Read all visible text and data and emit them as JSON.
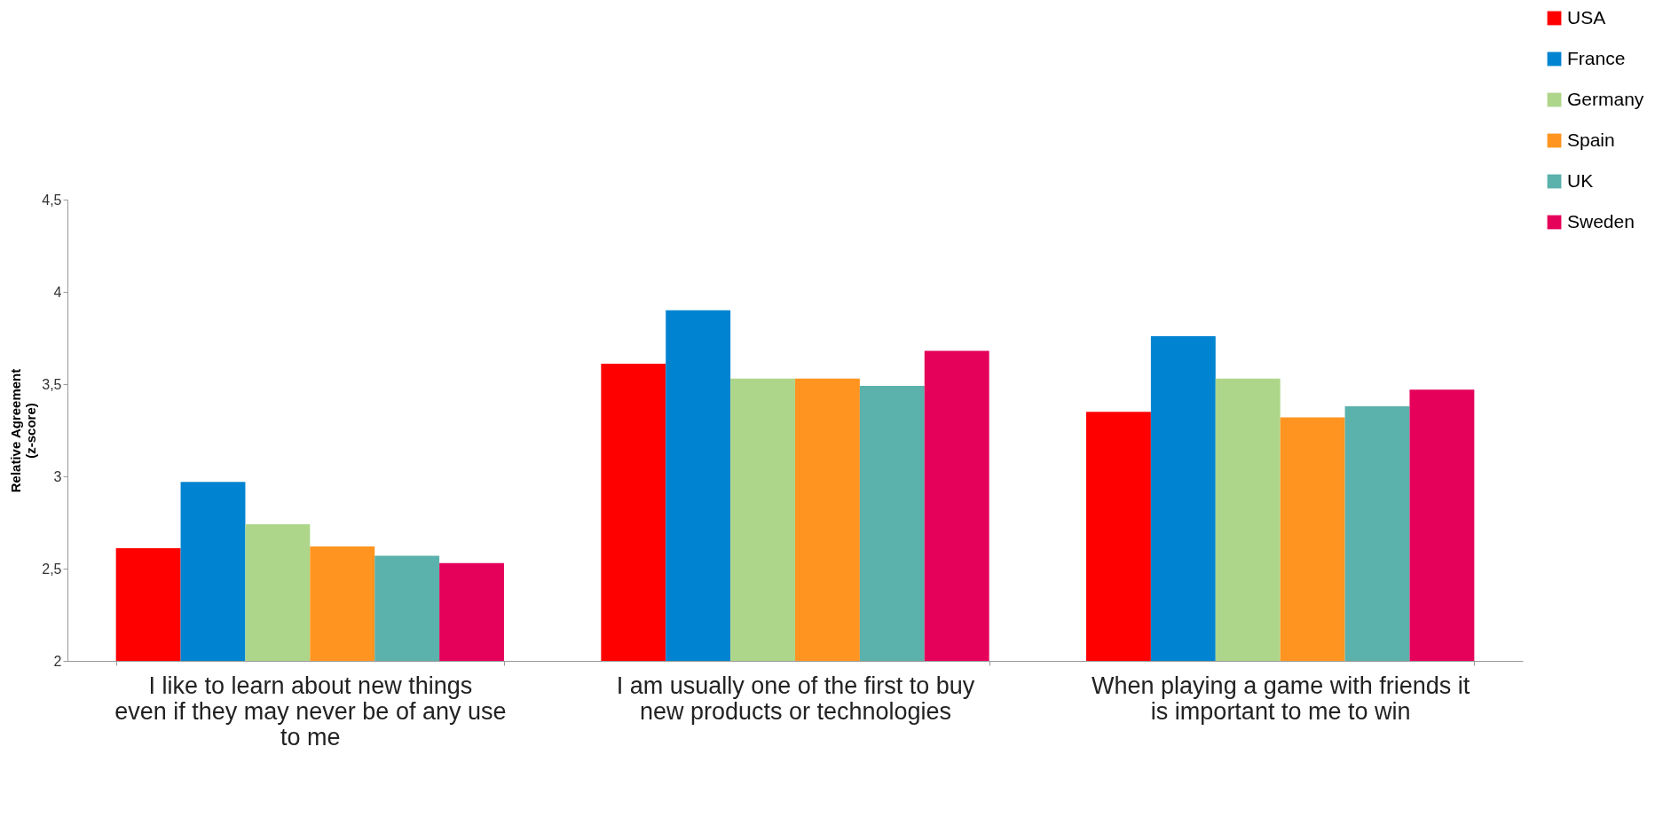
{
  "chart_data": {
    "type": "bar",
    "ylabel": "Relative Agreement (z-score)",
    "categories": [
      "I like to learn about new things even if they may never be of any use to me",
      "I am usually one of the first to buy new products or technologies",
      "When playing a game with friends it is important to me to win"
    ],
    "series": [
      {
        "name": "USA",
        "color": "#ff0000",
        "values": [
          2.61,
          3.61,
          3.35
        ]
      },
      {
        "name": "France",
        "color": "#0084d1",
        "values": [
          2.97,
          3.9,
          3.76
        ]
      },
      {
        "name": "Germany",
        "color": "#aed68a",
        "values": [
          2.74,
          3.53,
          3.53
        ]
      },
      {
        "name": "Spain",
        "color": "#ff9520",
        "values": [
          2.62,
          3.53,
          3.32
        ]
      },
      {
        "name": "UK",
        "color": "#5bb1ab",
        "values": [
          2.57,
          3.49,
          3.38
        ]
      },
      {
        "name": "Sweden",
        "color": "#e5005a",
        "values": [
          2.53,
          3.68,
          3.47
        ]
      }
    ],
    "ylim": [
      2,
      4.5
    ],
    "yticks": [
      2,
      {
        "value": 2.5,
        "label": "2,5"
      },
      3,
      {
        "value": 3.5,
        "label": "3,5"
      },
      4,
      {
        "value": 4.5,
        "label": "4,5"
      }
    ],
    "grid": false,
    "legend": "top right"
  }
}
